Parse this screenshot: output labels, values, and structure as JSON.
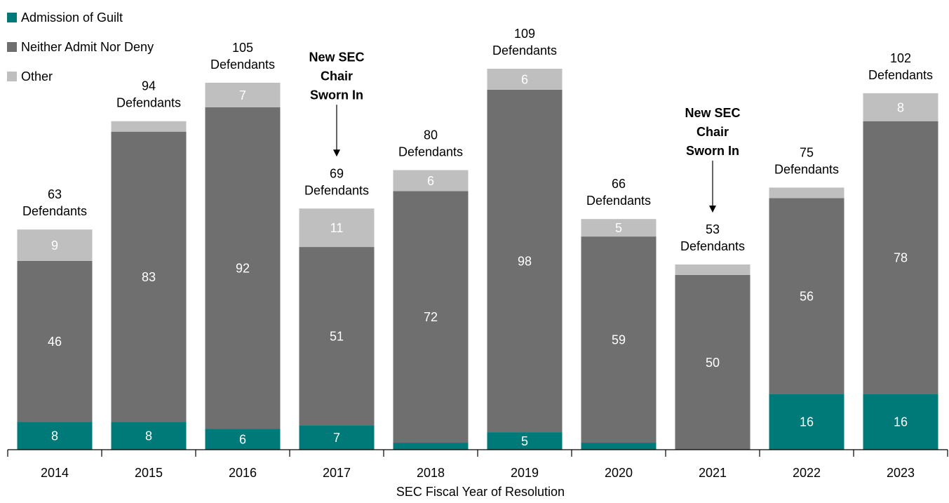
{
  "chart_data": {
    "type": "bar",
    "stacked": true,
    "xlabel": "SEC Fiscal Year of Resolution",
    "categories": [
      "2014",
      "2015",
      "2016",
      "2017",
      "2018",
      "2019",
      "2020",
      "2021",
      "2022",
      "2023"
    ],
    "series": [
      {
        "name": "Admission of Guilt",
        "color": "#007A78",
        "values": [
          8,
          8,
          6,
          7,
          2,
          5,
          2,
          0,
          16,
          16
        ],
        "labels": [
          "8",
          "8",
          "6",
          "7",
          "",
          "5",
          "",
          "",
          "16",
          "16"
        ]
      },
      {
        "name": "Neither Admit Nor Deny",
        "color": "#6F6F6F",
        "values": [
          46,
          83,
          92,
          51,
          72,
          98,
          59,
          50,
          56,
          78
        ],
        "labels": [
          "46",
          "83",
          "92",
          "51",
          "72",
          "98",
          "59",
          "50",
          "56",
          "78"
        ]
      },
      {
        "name": "Other",
        "color": "#BFBFBF",
        "values": [
          9,
          3,
          7,
          11,
          6,
          6,
          5,
          3,
          3,
          8
        ],
        "labels": [
          "9",
          "",
          "7",
          "11",
          "6",
          "6",
          "5",
          "",
          "",
          "8"
        ]
      }
    ],
    "totals": {
      "values": [
        "63",
        "94",
        "105",
        "69",
        "80",
        "109",
        "66",
        "53",
        "75",
        "102"
      ],
      "suffix": "Defendants"
    },
    "annotations": [
      {
        "category": "2017",
        "lines": [
          "New SEC",
          "Chair",
          "Sworn In"
        ]
      },
      {
        "category": "2021",
        "lines": [
          "New SEC",
          "Chair",
          "Sworn In"
        ]
      }
    ],
    "ylim": [
      0,
      109
    ],
    "grid": false,
    "legend_position": "top-left"
  }
}
